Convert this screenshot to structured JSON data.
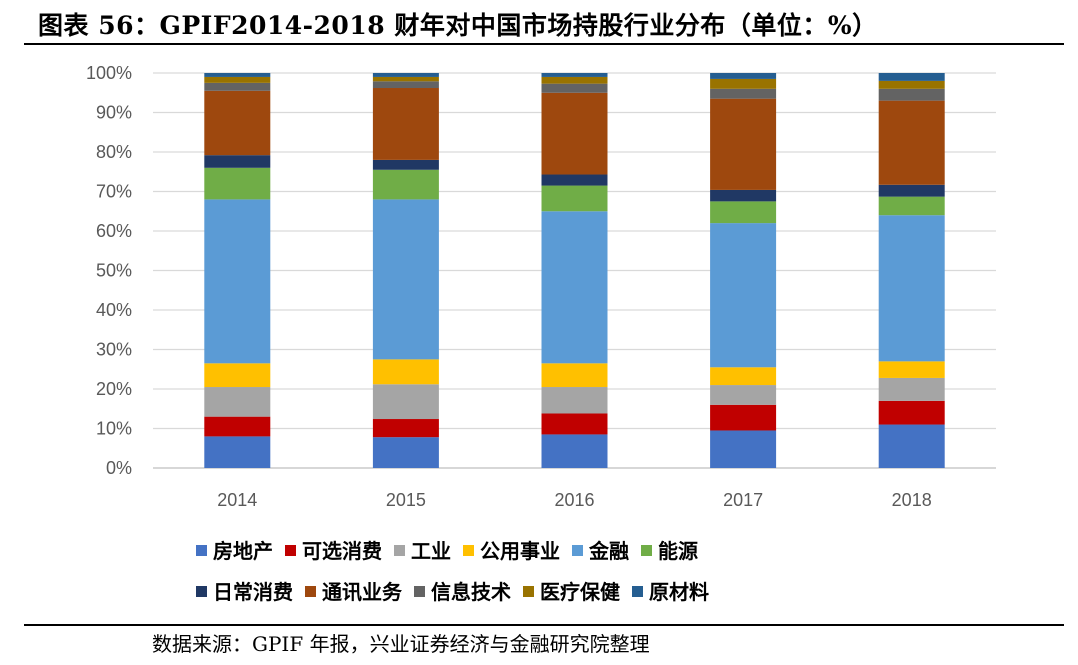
{
  "header": {
    "title": "图表 56：GPIF2014-2018 财年对中国市场持股行业分布（单位：%）"
  },
  "footer": {
    "source": "数据来源：GPIF 年报，兴业证券经济与金融研究院整理"
  },
  "chart_data": {
    "type": "bar",
    "stacked": true,
    "categories": [
      "2014",
      "2015",
      "2016",
      "2017",
      "2018"
    ],
    "ylim": [
      0,
      100
    ],
    "yticks": [
      "0%",
      "10%",
      "20%",
      "30%",
      "40%",
      "50%",
      "60%",
      "70%",
      "80%",
      "90%",
      "100%"
    ],
    "grid": true,
    "legend_position": "bottom",
    "series": [
      {
        "name": "房地产",
        "color": "#4472C4",
        "values": [
          8.0,
          7.8,
          8.5,
          9.5,
          11.0
        ]
      },
      {
        "name": "可选消费",
        "color": "#C00000",
        "values": [
          5.0,
          4.6,
          5.3,
          6.5,
          6.0
        ]
      },
      {
        "name": "工业",
        "color": "#A5A5A5",
        "values": [
          7.5,
          8.8,
          6.7,
          5.0,
          5.8
        ]
      },
      {
        "name": "公用事业",
        "color": "#FFC000",
        "values": [
          6.0,
          6.3,
          6.0,
          4.5,
          4.2
        ]
      },
      {
        "name": "金融",
        "color": "#5B9BD5",
        "values": [
          41.5,
          40.5,
          38.5,
          36.5,
          37.0
        ]
      },
      {
        "name": "能源",
        "color": "#70AD47",
        "values": [
          8.0,
          7.5,
          6.5,
          5.5,
          4.7
        ]
      },
      {
        "name": "日常消费",
        "color": "#203864",
        "values": [
          3.2,
          2.5,
          2.8,
          2.9,
          3.0
        ]
      },
      {
        "name": "通讯业务",
        "color": "#9E480E",
        "values": [
          16.3,
          18.2,
          20.7,
          23.1,
          21.3
        ]
      },
      {
        "name": "信息技术",
        "color": "#636363",
        "values": [
          2.0,
          1.7,
          2.3,
          2.5,
          3.0
        ]
      },
      {
        "name": "医疗保健",
        "color": "#997300",
        "values": [
          1.5,
          1.1,
          1.7,
          2.5,
          2.0
        ]
      },
      {
        "name": "原材料",
        "color": "#255E91",
        "values": [
          1.0,
          1.0,
          1.0,
          1.5,
          2.0
        ]
      }
    ]
  }
}
